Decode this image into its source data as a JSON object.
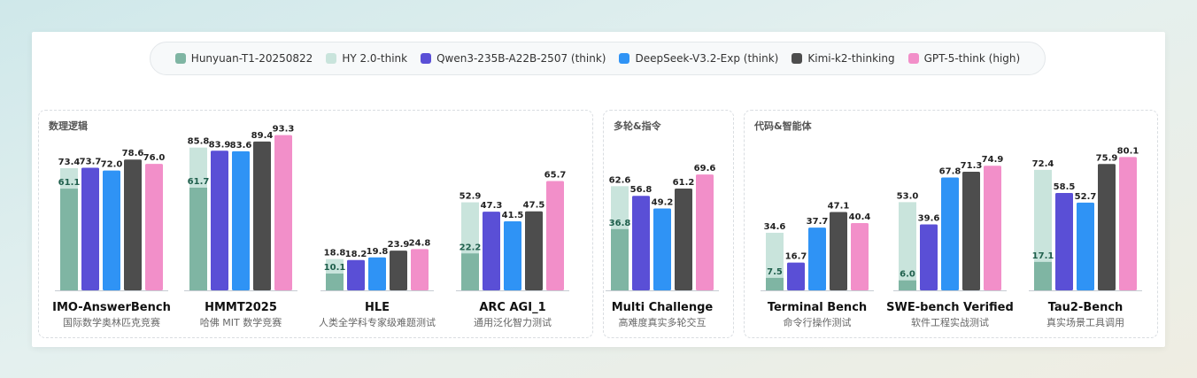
{
  "legend": [
    {
      "name": "Hunyuan-T1-20250822",
      "color": "#7fb5a3"
    },
    {
      "name": "HY 2.0-think",
      "color": "#c9e4dc"
    },
    {
      "name": "Qwen3-235B-A22B-2507 (think)",
      "color": "#5a4fd6"
    },
    {
      "name": "DeepSeek-V3.2-Exp (think)",
      "color": "#2f93f5"
    },
    {
      "name": "Kimi-k2-thinking",
      "color": "#4d4d4d"
    },
    {
      "name": "GPT-5-think (high)",
      "color": "#f28fc9"
    }
  ],
  "panels": [
    {
      "title": "数理逻辑"
    },
    {
      "title": "多轮&指令"
    },
    {
      "title": "代码&智能体"
    }
  ],
  "chart_data": {
    "type": "bar",
    "ylim": [
      0,
      100
    ],
    "series_names": [
      "Hunyuan-T1-20250822",
      "HY 2.0-think",
      "Qwen3-235B-A22B-2507 (think)",
      "DeepSeek-V3.2-Exp (think)",
      "Kimi-k2-thinking",
      "GPT-5-think (high)"
    ],
    "categories": [
      {
        "name": "IMO-AnswerBench",
        "subtitle": "国际数学奥林匹克竞赛",
        "hunyuan_t1": 61.1,
        "hy2_think": 73.4,
        "qwen3": 73.7,
        "deepseek": 72.0,
        "kimi": 78.6,
        "gpt5": 76.0
      },
      {
        "name": "HMMT2025",
        "subtitle": "哈佛 MIT 数学竞赛",
        "hunyuan_t1": 61.7,
        "hy2_think": 85.8,
        "qwen3": 83.9,
        "deepseek": 83.6,
        "kimi": 89.4,
        "gpt5": 93.3
      },
      {
        "name": "HLE",
        "subtitle": "人类全学科专家级难题测试",
        "hunyuan_t1": 10.1,
        "hy2_think": 18.8,
        "qwen3": 18.2,
        "deepseek": 19.8,
        "kimi": 23.9,
        "gpt5": 24.8
      },
      {
        "name": "ARC AGI_1",
        "subtitle": "通用泛化智力测试",
        "hunyuan_t1": 22.2,
        "hy2_think": 52.9,
        "qwen3": 47.3,
        "deepseek": 41.5,
        "kimi": 47.5,
        "gpt5": 65.7
      },
      {
        "name": "Multi Challenge",
        "subtitle": "高难度真实多轮交互",
        "hunyuan_t1": 36.8,
        "hy2_think": 62.6,
        "qwen3": 56.8,
        "deepseek": 49.2,
        "kimi": 61.2,
        "gpt5": 69.6
      },
      {
        "name": "Terminal Bench",
        "subtitle": "命令行操作测试",
        "hunyuan_t1": 7.5,
        "hy2_think": 34.6,
        "qwen3": 16.7,
        "deepseek": 37.7,
        "kimi": 47.1,
        "gpt5": 40.4
      },
      {
        "name": "SWE-bench Verified",
        "subtitle": "软件工程实战测试",
        "hunyuan_t1": 6.0,
        "hy2_think": 53.0,
        "qwen3": 39.6,
        "deepseek": 67.8,
        "kimi": 71.3,
        "gpt5": 74.9
      },
      {
        "name": "Tau2-Bench",
        "subtitle": "真实场景工具调用",
        "hunyuan_t1": 17.1,
        "hy2_think": 72.4,
        "qwen3": 58.5,
        "deepseek": 52.7,
        "kimi": 75.9,
        "gpt5": 80.1
      }
    ]
  }
}
